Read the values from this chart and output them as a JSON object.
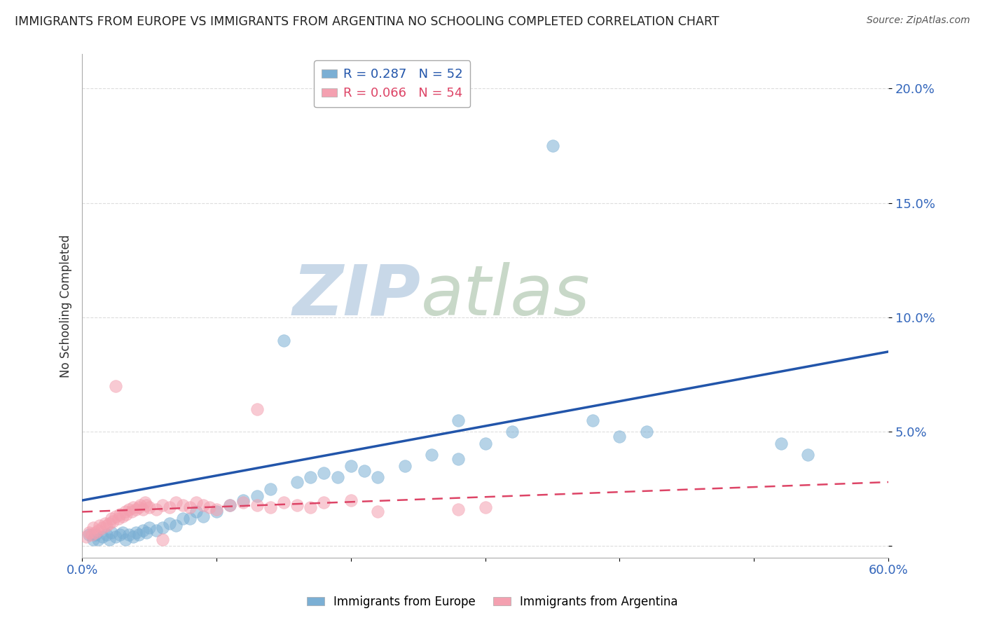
{
  "title": "IMMIGRANTS FROM EUROPE VS IMMIGRANTS FROM ARGENTINA NO SCHOOLING COMPLETED CORRELATION CHART",
  "source": "Source: ZipAtlas.com",
  "ylabel": "No Schooling Completed",
  "yticks": [
    0.0,
    0.05,
    0.1,
    0.15,
    0.2
  ],
  "ytick_labels": [
    "",
    "5.0%",
    "10.0%",
    "15.0%",
    "20.0%"
  ],
  "xlim": [
    0.0,
    0.6
  ],
  "ylim": [
    -0.005,
    0.215
  ],
  "legend_europe": "R = 0.287   N = 52",
  "legend_argentina": "R = 0.066   N = 54",
  "europe_color": "#7BAFD4",
  "argentina_color": "#F4A0B0",
  "europe_line_color": "#2255AA",
  "argentina_line_color": "#DD4466",
  "watermark_zip": "ZIP",
  "watermark_atlas": "atlas",
  "watermark_color_zip": "#C8D8E8",
  "watermark_color_atlas": "#C8D8C8",
  "background_color": "#FFFFFF",
  "grid_color": "#DDDDDD",
  "europe_x": [
    0.005,
    0.008,
    0.01,
    0.012,
    0.015,
    0.018,
    0.02,
    0.022,
    0.025,
    0.028,
    0.03,
    0.032,
    0.035,
    0.038,
    0.04,
    0.042,
    0.045,
    0.048,
    0.05,
    0.055,
    0.06,
    0.065,
    0.07,
    0.075,
    0.08,
    0.085,
    0.09,
    0.1,
    0.11,
    0.12,
    0.13,
    0.14,
    0.15,
    0.16,
    0.17,
    0.18,
    0.19,
    0.2,
    0.21,
    0.22,
    0.24,
    0.26,
    0.28,
    0.3,
    0.32,
    0.35,
    0.38,
    0.42,
    0.52,
    0.54,
    0.28,
    0.4
  ],
  "europe_y": [
    0.005,
    0.003,
    0.005,
    0.003,
    0.004,
    0.005,
    0.003,
    0.006,
    0.004,
    0.005,
    0.006,
    0.003,
    0.005,
    0.004,
    0.006,
    0.005,
    0.007,
    0.006,
    0.008,
    0.007,
    0.008,
    0.01,
    0.009,
    0.012,
    0.012,
    0.015,
    0.013,
    0.015,
    0.018,
    0.02,
    0.022,
    0.025,
    0.09,
    0.028,
    0.03,
    0.032,
    0.03,
    0.035,
    0.033,
    0.03,
    0.035,
    0.04,
    0.038,
    0.045,
    0.05,
    0.175,
    0.055,
    0.05,
    0.045,
    0.04,
    0.055,
    0.048
  ],
  "argentina_x": [
    0.003,
    0.005,
    0.007,
    0.008,
    0.01,
    0.012,
    0.013,
    0.015,
    0.017,
    0.018,
    0.02,
    0.022,
    0.023,
    0.025,
    0.027,
    0.028,
    0.03,
    0.032,
    0.033,
    0.035,
    0.037,
    0.038,
    0.04,
    0.042,
    0.043,
    0.045,
    0.047,
    0.048,
    0.05,
    0.055,
    0.06,
    0.065,
    0.07,
    0.075,
    0.08,
    0.085,
    0.09,
    0.095,
    0.1,
    0.11,
    0.12,
    0.13,
    0.14,
    0.15,
    0.16,
    0.17,
    0.18,
    0.22,
    0.28,
    0.3,
    0.025,
    0.06,
    0.13,
    0.2
  ],
  "argentina_y": [
    0.004,
    0.006,
    0.005,
    0.008,
    0.006,
    0.007,
    0.009,
    0.008,
    0.01,
    0.009,
    0.01,
    0.012,
    0.011,
    0.013,
    0.012,
    0.014,
    0.013,
    0.015,
    0.014,
    0.016,
    0.015,
    0.017,
    0.016,
    0.017,
    0.018,
    0.016,
    0.019,
    0.018,
    0.017,
    0.016,
    0.018,
    0.017,
    0.019,
    0.018,
    0.017,
    0.019,
    0.018,
    0.017,
    0.016,
    0.018,
    0.019,
    0.018,
    0.017,
    0.019,
    0.018,
    0.017,
    0.019,
    0.015,
    0.016,
    0.017,
    0.07,
    0.003,
    0.06,
    0.02
  ]
}
